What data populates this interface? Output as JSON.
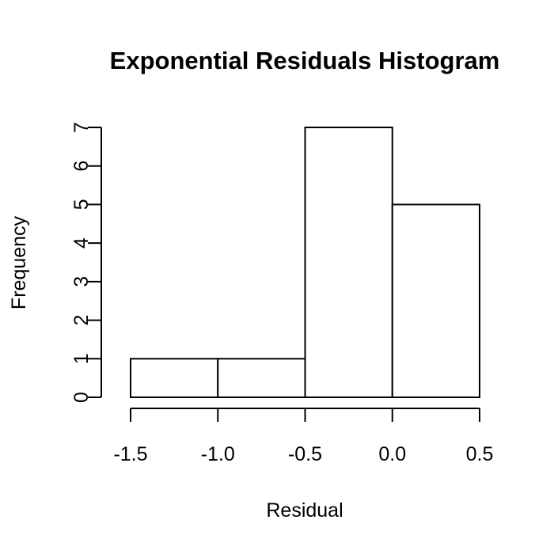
{
  "chart_data": {
    "type": "bar",
    "title": "Exponential Residuals Histogram",
    "xlabel": "Residual",
    "ylabel": "Frequency",
    "bins": [
      {
        "start": -1.5,
        "end": -1.0,
        "count": 1
      },
      {
        "start": -1.0,
        "end": -0.5,
        "count": 1
      },
      {
        "start": -0.5,
        "end": 0.0,
        "count": 7
      },
      {
        "start": 0.0,
        "end": 0.5,
        "count": 5
      }
    ],
    "x_ticks": [
      -1.5,
      -1.0,
      -0.5,
      0.0,
      0.5
    ],
    "x_tick_labels": [
      "-1.5",
      "-1.0",
      "-0.5",
      "0.0",
      "0.5"
    ],
    "y_ticks": [
      0,
      1,
      2,
      3,
      4,
      5,
      6,
      7
    ],
    "y_tick_labels": [
      "0",
      "1",
      "2",
      "3",
      "4",
      "5",
      "6",
      "7"
    ],
    "xlim": [
      -1.5,
      0.5
    ],
    "ylim": [
      0,
      7
    ],
    "grid": false,
    "legend": "none",
    "colors": {
      "bar_fill": "#ffffff",
      "bar_stroke": "#000000",
      "axis": "#000000",
      "background": "#ffffff"
    }
  }
}
